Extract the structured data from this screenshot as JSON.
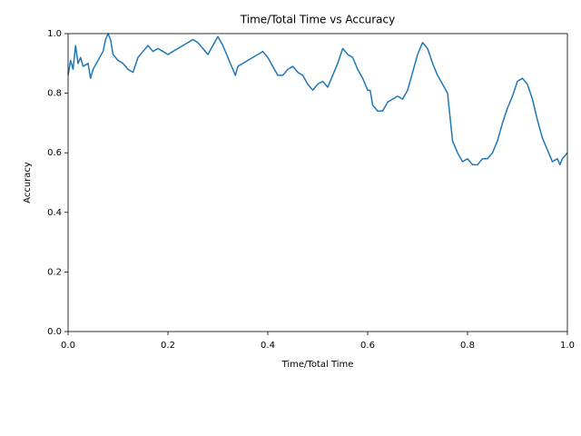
{
  "chart_data": {
    "type": "line",
    "title": "Time/Total Time vs Accuracy",
    "x_label": "Time/Total Time",
    "y_label": "Accuracy",
    "x": [
      0,
      0.005,
      0.01,
      0.015,
      0.02,
      0.025,
      0.03,
      0.04,
      0.045,
      0.05,
      0.06,
      0.07,
      0.075,
      0.08,
      0.085,
      0.09,
      0.1,
      0.11,
      0.12,
      0.13,
      0.14,
      0.15,
      0.16,
      0.17,
      0.18,
      0.19,
      0.2,
      0.21,
      0.22,
      0.23,
      0.24,
      0.25,
      0.26,
      0.27,
      0.28,
      0.29,
      0.3,
      0.31,
      0.32,
      0.33,
      0.335,
      0.34,
      0.35,
      0.36,
      0.37,
      0.38,
      0.39,
      0.4,
      0.41,
      0.42,
      0.43,
      0.44,
      0.45,
      0.46,
      0.47,
      0.48,
      0.49,
      0.5,
      0.51,
      0.52,
      0.53,
      0.54,
      0.55,
      0.56,
      0.57,
      0.58,
      0.59,
      0.6,
      0.605,
      0.61,
      0.62,
      0.63,
      0.64,
      0.65,
      0.66,
      0.67,
      0.68,
      0.69,
      0.7,
      0.71,
      0.72,
      0.73,
      0.74,
      0.75,
      0.76,
      0.765,
      0.77,
      0.78,
      0.79,
      0.8,
      0.81,
      0.82,
      0.83,
      0.84,
      0.85,
      0.86,
      0.87,
      0.88,
      0.89,
      0.9,
      0.91,
      0.92,
      0.93,
      0.94,
      0.95,
      0.96,
      0.97,
      0.98,
      0.985,
      0.99,
      1
    ],
    "series": [
      {
        "name": "Accuracy",
        "color": "#1f77b4",
        "values": [
          0.86,
          0.91,
          0.88,
          0.96,
          0.9,
          0.92,
          0.89,
          0.9,
          0.85,
          0.88,
          0.91,
          0.94,
          0.98,
          1.0,
          0.98,
          0.93,
          0.91,
          0.9,
          0.88,
          0.87,
          0.92,
          0.94,
          0.96,
          0.94,
          0.95,
          0.94,
          0.93,
          0.94,
          0.95,
          0.96,
          0.97,
          0.98,
          0.97,
          0.95,
          0.93,
          0.96,
          0.99,
          0.96,
          0.92,
          0.88,
          0.86,
          0.89,
          0.9,
          0.91,
          0.92,
          0.93,
          0.94,
          0.92,
          0.89,
          0.86,
          0.86,
          0.88,
          0.89,
          0.87,
          0.86,
          0.83,
          0.81,
          0.83,
          0.84,
          0.82,
          0.86,
          0.9,
          0.95,
          0.93,
          0.92,
          0.88,
          0.85,
          0.81,
          0.81,
          0.76,
          0.74,
          0.74,
          0.77,
          0.78,
          0.79,
          0.78,
          0.81,
          0.87,
          0.93,
          0.97,
          0.95,
          0.9,
          0.86,
          0.83,
          0.8,
          0.72,
          0.64,
          0.6,
          0.57,
          0.58,
          0.56,
          0.56,
          0.58,
          0.58,
          0.6,
          0.64,
          0.7,
          0.75,
          0.79,
          0.84,
          0.85,
          0.83,
          0.78,
          0.71,
          0.65,
          0.61,
          0.57,
          0.58,
          0.56,
          0.58,
          0.6
        ]
      }
    ],
    "xlim": [
      0,
      1
    ],
    "ylim": [
      0,
      1
    ],
    "xticks": [
      {
        "value": 0,
        "label": "0.0"
      },
      0.2,
      0.4,
      0.6,
      0.8,
      {
        "value": 1,
        "label": "1.0"
      }
    ],
    "yticks": [
      {
        "value": 0,
        "label": "0.0"
      },
      0.2,
      0.4,
      0.6,
      0.8,
      {
        "value": 1,
        "label": "1.0"
      }
    ],
    "grid": false
  }
}
